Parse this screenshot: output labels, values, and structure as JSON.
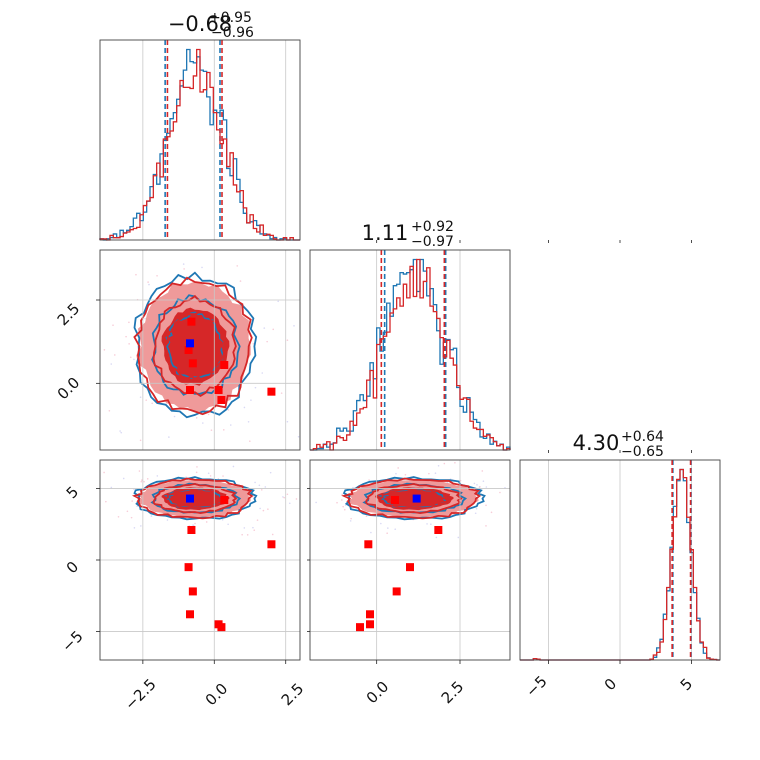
{
  "colors": {
    "blue": "#1f77b4",
    "red": "#d62728",
    "truth_marker": "#0000ff",
    "sample_marker": "#ff0000"
  },
  "chart_data": {
    "type": "scatter",
    "subtype": "corner-plot",
    "parameters": [
      {
        "title_value": "−0.68",
        "title_plus": "+0.95",
        "title_minus": "−0.96",
        "median": -0.68,
        "lo": -1.64,
        "hi": 0.27,
        "range": [
          -4.0,
          3.0
        ]
      },
      {
        "title_value": "1.11",
        "title_plus": "+0.92",
        "title_minus": "−0.97",
        "median": 1.11,
        "lo": 0.14,
        "hi": 2.03,
        "range": [
          -2.0,
          4.0
        ]
      },
      {
        "title_value": "4.30",
        "title_plus": "+0.64",
        "title_minus": "−0.65",
        "median": 4.3,
        "lo": 3.65,
        "hi": 4.94,
        "range": [
          -7.0,
          7.0
        ]
      }
    ],
    "tick_labels": {
      "p0": [
        "−2.5",
        "0.0",
        "2.5"
      ],
      "p1": [
        "0.0",
        "2.5"
      ],
      "p2": [
        "−5",
        "0",
        "5"
      ]
    },
    "series": [
      {
        "name": "",
        "color": "#1f77b4",
        "quantile_lines": {
          "p0": [
            -1.72,
            0.2
          ],
          "p1": [
            0.24,
            2.07
          ],
          "p2": [
            3.7,
            4.97
          ]
        }
      },
      {
        "name": "",
        "color": "#d62728",
        "quantile_lines": {
          "p0": [
            -1.64,
            0.27
          ],
          "p1": [
            0.14,
            2.03
          ],
          "p2": [
            3.65,
            4.94
          ]
        }
      }
    ],
    "truth_point": {
      "p0": -0.85,
      "p1": 1.2,
      "p2": 4.3
    },
    "sample_points": [
      {
        "p0": -0.8,
        "p1": 1.85,
        "p2": 2.1
      },
      {
        "p0": -0.9,
        "p1": 1.0,
        "p2": -0.5
      },
      {
        "p0": -0.75,
        "p1": 0.6,
        "p2": -2.2
      },
      {
        "p0": -0.85,
        "p1": -0.2,
        "p2": -3.8
      },
      {
        "p0": 0.35,
        "p1": 0.55,
        "p2": 4.2
      },
      {
        "p0": 0.15,
        "p1": -0.2,
        "p2": -4.5
      },
      {
        "p0": 0.25,
        "p1": -0.5,
        "p2": -4.7
      },
      {
        "p0": 2.0,
        "p1": -0.25,
        "p2": 1.1
      }
    ]
  }
}
